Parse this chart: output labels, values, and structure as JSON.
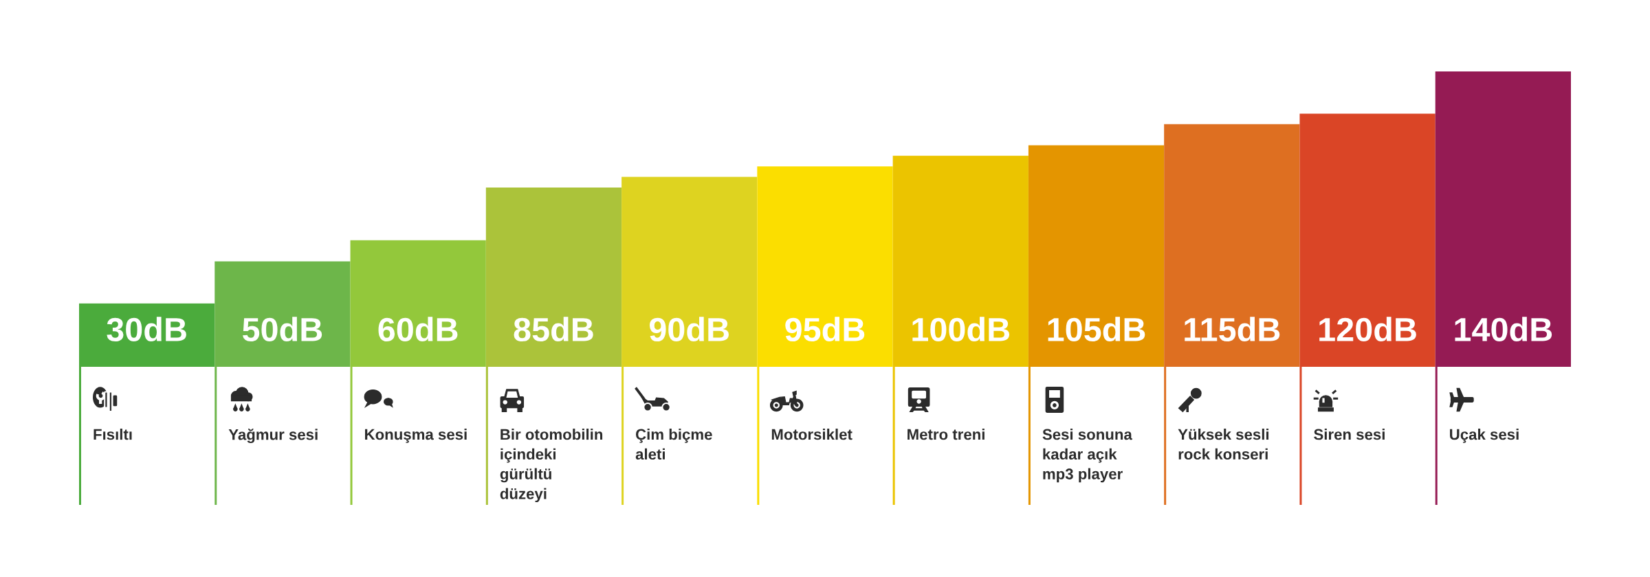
{
  "chart_data": {
    "type": "bar",
    "categories": [
      "Fısıltı",
      "Yağmur sesi",
      "Konuşma sesi",
      "Bir otomobilin\niçindeki\ngürültü\ndüzeyi",
      "Çim biçme\naleti",
      "Motorsiklet",
      "Metro treni",
      "Sesi sonuna\nkadar açık\nmp3 player",
      "Yüksek sesli\nrock konseri",
      "Siren sesi",
      "Uçak sesi"
    ],
    "values": [
      30,
      50,
      60,
      85,
      90,
      95,
      100,
      105,
      115,
      120,
      140
    ],
    "value_labels": [
      "30dB",
      "50dB",
      "60dB",
      "85dB",
      "90dB",
      "95dB",
      "100dB",
      "105dB",
      "115dB",
      "120dB",
      "140dB"
    ],
    "colors": [
      "#4bab3c",
      "#6db64a",
      "#93c83b",
      "#abc33a",
      "#ded320",
      "#fbde00",
      "#ebc400",
      "#e49500",
      "#de6f21",
      "#da4526",
      "#951b54"
    ],
    "tick_labels": "x"
  }
}
